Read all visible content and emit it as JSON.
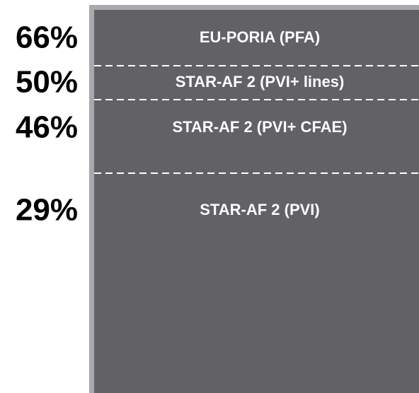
{
  "chart_data": {
    "type": "bar",
    "categories": [
      "EU-PORIA (PFA)",
      "STAR-AF 2 (PVI+ lines)",
      "STAR-AF 2 (PVI+ CFAE)",
      "STAR-AF 2 (PVI)"
    ],
    "values": [
      66,
      50,
      46,
      29
    ],
    "value_labels": [
      "66%",
      "50%",
      "46%",
      "29%"
    ],
    "unit": "%",
    "colors": {
      "bar_fill": "#616166",
      "bar_border": "#a9a9ad",
      "divider": "#ffffff",
      "bar_label_text": "#ffffff",
      "value_label_text": "#000000"
    },
    "grid": false,
    "legend": "none"
  }
}
